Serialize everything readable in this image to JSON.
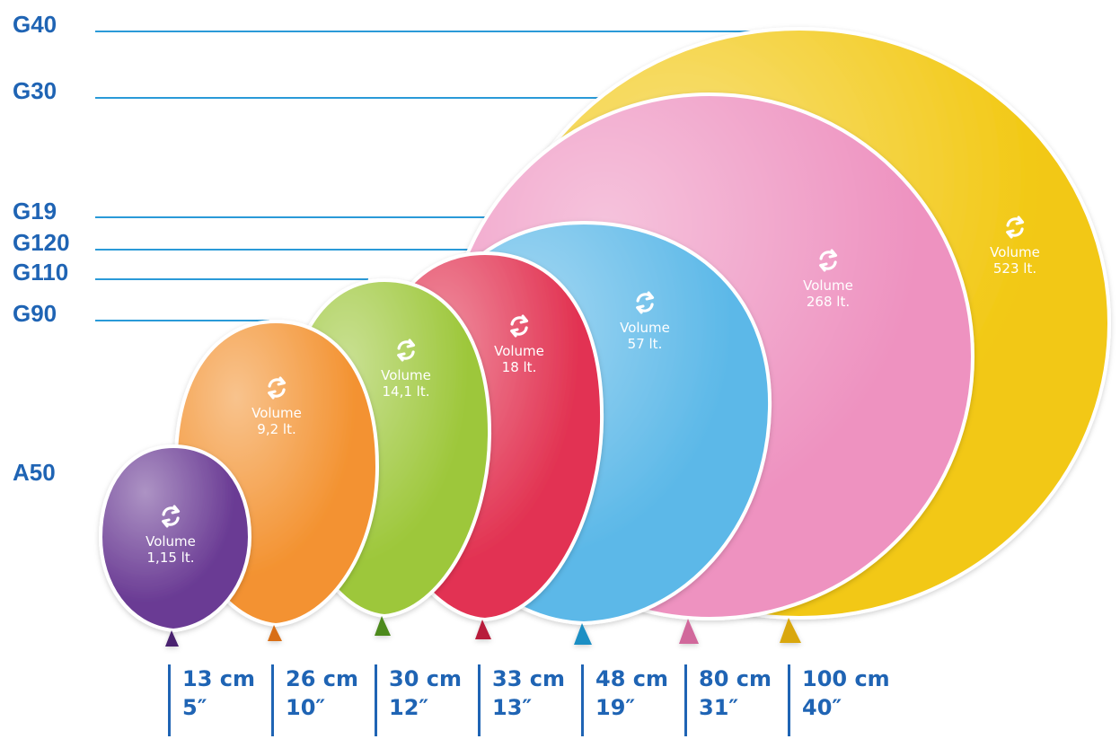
{
  "models": [
    {
      "code": "G40",
      "size_cm": "100 cm",
      "size_in": "40″",
      "volume_label": "Volume",
      "volume": "523 lt.",
      "color": "#f2c812"
    },
    {
      "code": "G30",
      "size_cm": "80 cm",
      "size_in": "31″",
      "volume_label": "Volume",
      "volume": "268 lt.",
      "color": "#ee92c0"
    },
    {
      "code": "G19",
      "size_cm": "48 cm",
      "size_in": "19″",
      "volume_label": "Volume",
      "volume": "57 lt.",
      "color": "#5bb8e8"
    },
    {
      "code": "G120",
      "size_cm": "33 cm",
      "size_in": "13″",
      "volume_label": "Volume",
      "volume": "18 lt.",
      "color": "#e23352"
    },
    {
      "code": "G110",
      "size_cm": "30 cm",
      "size_in": "12″",
      "volume_label": "Volume",
      "volume": "14,1 lt.",
      "color": "#9dc73a"
    },
    {
      "code": "G90",
      "size_cm": "26 cm",
      "size_in": "10″",
      "volume_label": "Volume",
      "volume": "9,2 lt.",
      "color": "#f39230"
    },
    {
      "code": "A50",
      "size_cm": "13 cm",
      "size_in": "5″",
      "volume_label": "Volume",
      "volume": "1,15 lt.",
      "color": "#6a3b94"
    }
  ],
  "colors": {
    "label_blue": "#1f64b4",
    "line_blue": "#2a9ad8"
  }
}
